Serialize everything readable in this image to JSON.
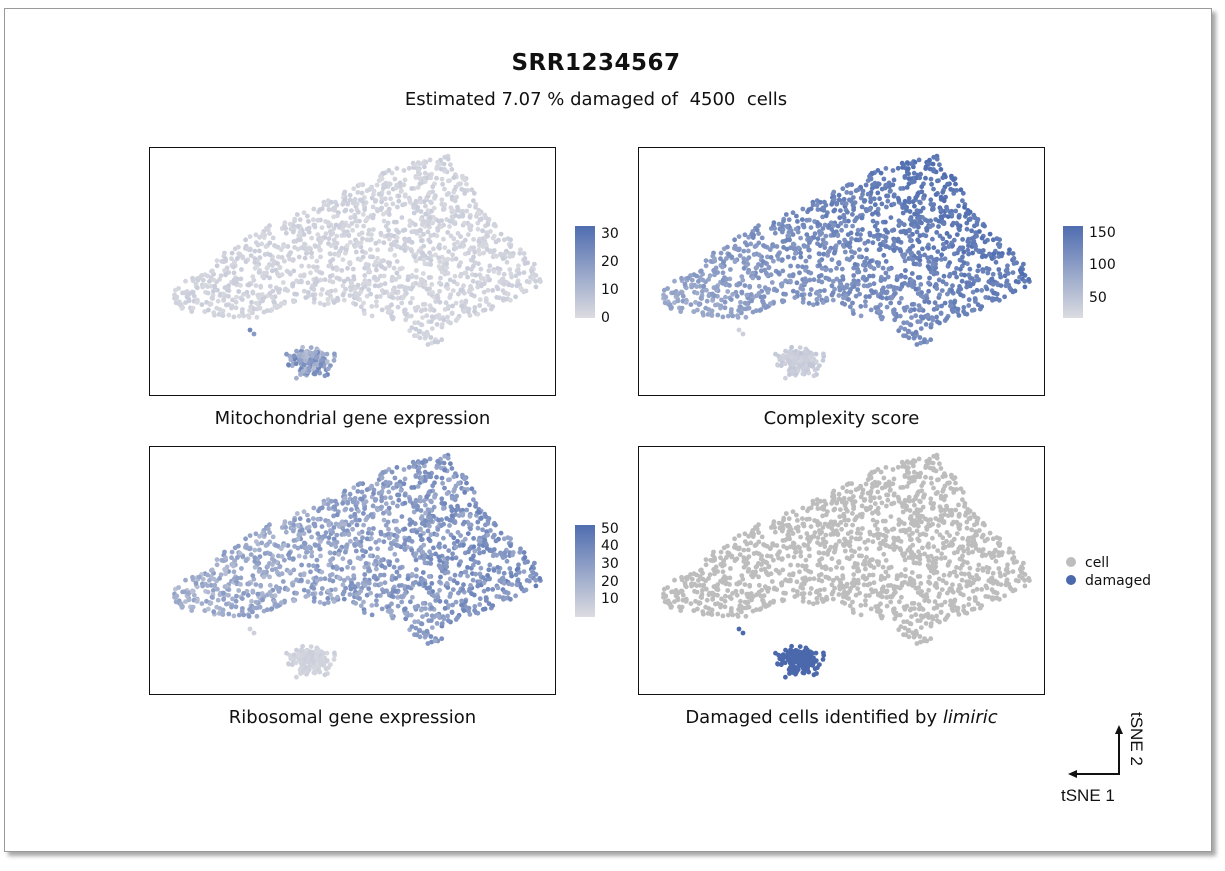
{
  "title": "SRR1234567",
  "subtitle": "Estimated 7.07 % damaged of  4500  cells",
  "colors": {
    "low": "#dcdce1",
    "high": "#4f6db0",
    "cell": "#bdbdbd",
    "damaged": "#4a68ab",
    "frame": "#9a9a9a"
  },
  "panels": [
    {
      "title": "Mitochondrial gene expression",
      "title_italic": "",
      "colorbar": {
        "ticks": [
          "30",
          "20",
          "10",
          "0"
        ],
        "min": 0,
        "max": 33
      }
    },
    {
      "title": "Complexity score",
      "title_italic": "",
      "colorbar": {
        "ticks": [
          "150",
          "100",
          "50"
        ],
        "min": 20,
        "max": 160
      }
    },
    {
      "title": "Ribosomal gene expression",
      "title_italic": "",
      "colorbar": {
        "ticks": [
          "50",
          "40",
          "30",
          "20",
          "10"
        ],
        "min": 0,
        "max": 52
      }
    },
    {
      "title": "Damaged cells identified by ",
      "title_italic": "limiric",
      "legend": [
        "cell",
        "damaged"
      ]
    }
  ],
  "axis_indicator": {
    "x": "tSNE 1",
    "y": "tSNE 2"
  },
  "chart_data": [
    {
      "type": "scatter",
      "title": "Mitochondrial gene expression",
      "xlabel": "tSNE 1",
      "ylabel": "tSNE 2",
      "color_scale": {
        "min": 0,
        "max": 33,
        "ticks": [
          0,
          10,
          20,
          30
        ]
      },
      "description_values": {
        "main_cluster_level": "low (~0-8)",
        "small_cluster_level": "elevated (~10-25)"
      }
    },
    {
      "type": "scatter",
      "title": "Complexity score",
      "xlabel": "tSNE 1",
      "ylabel": "tSNE 2",
      "color_scale": {
        "min": 20,
        "max": 160,
        "ticks": [
          50,
          100,
          150
        ]
      }
    },
    {
      "type": "scatter",
      "title": "Ribosomal gene expression",
      "xlabel": "tSNE 1",
      "ylabel": "tSNE 2",
      "color_scale": {
        "min": 0,
        "max": 52,
        "ticks": [
          10,
          20,
          30,
          40,
          50
        ]
      }
    },
    {
      "type": "scatter",
      "title": "Damaged cells identified by limiric",
      "xlabel": "tSNE 1",
      "ylabel": "tSNE 2",
      "legend": [
        "cell",
        "damaged"
      ],
      "total_cells": 4500,
      "damaged_percent": 7.07
    }
  ]
}
